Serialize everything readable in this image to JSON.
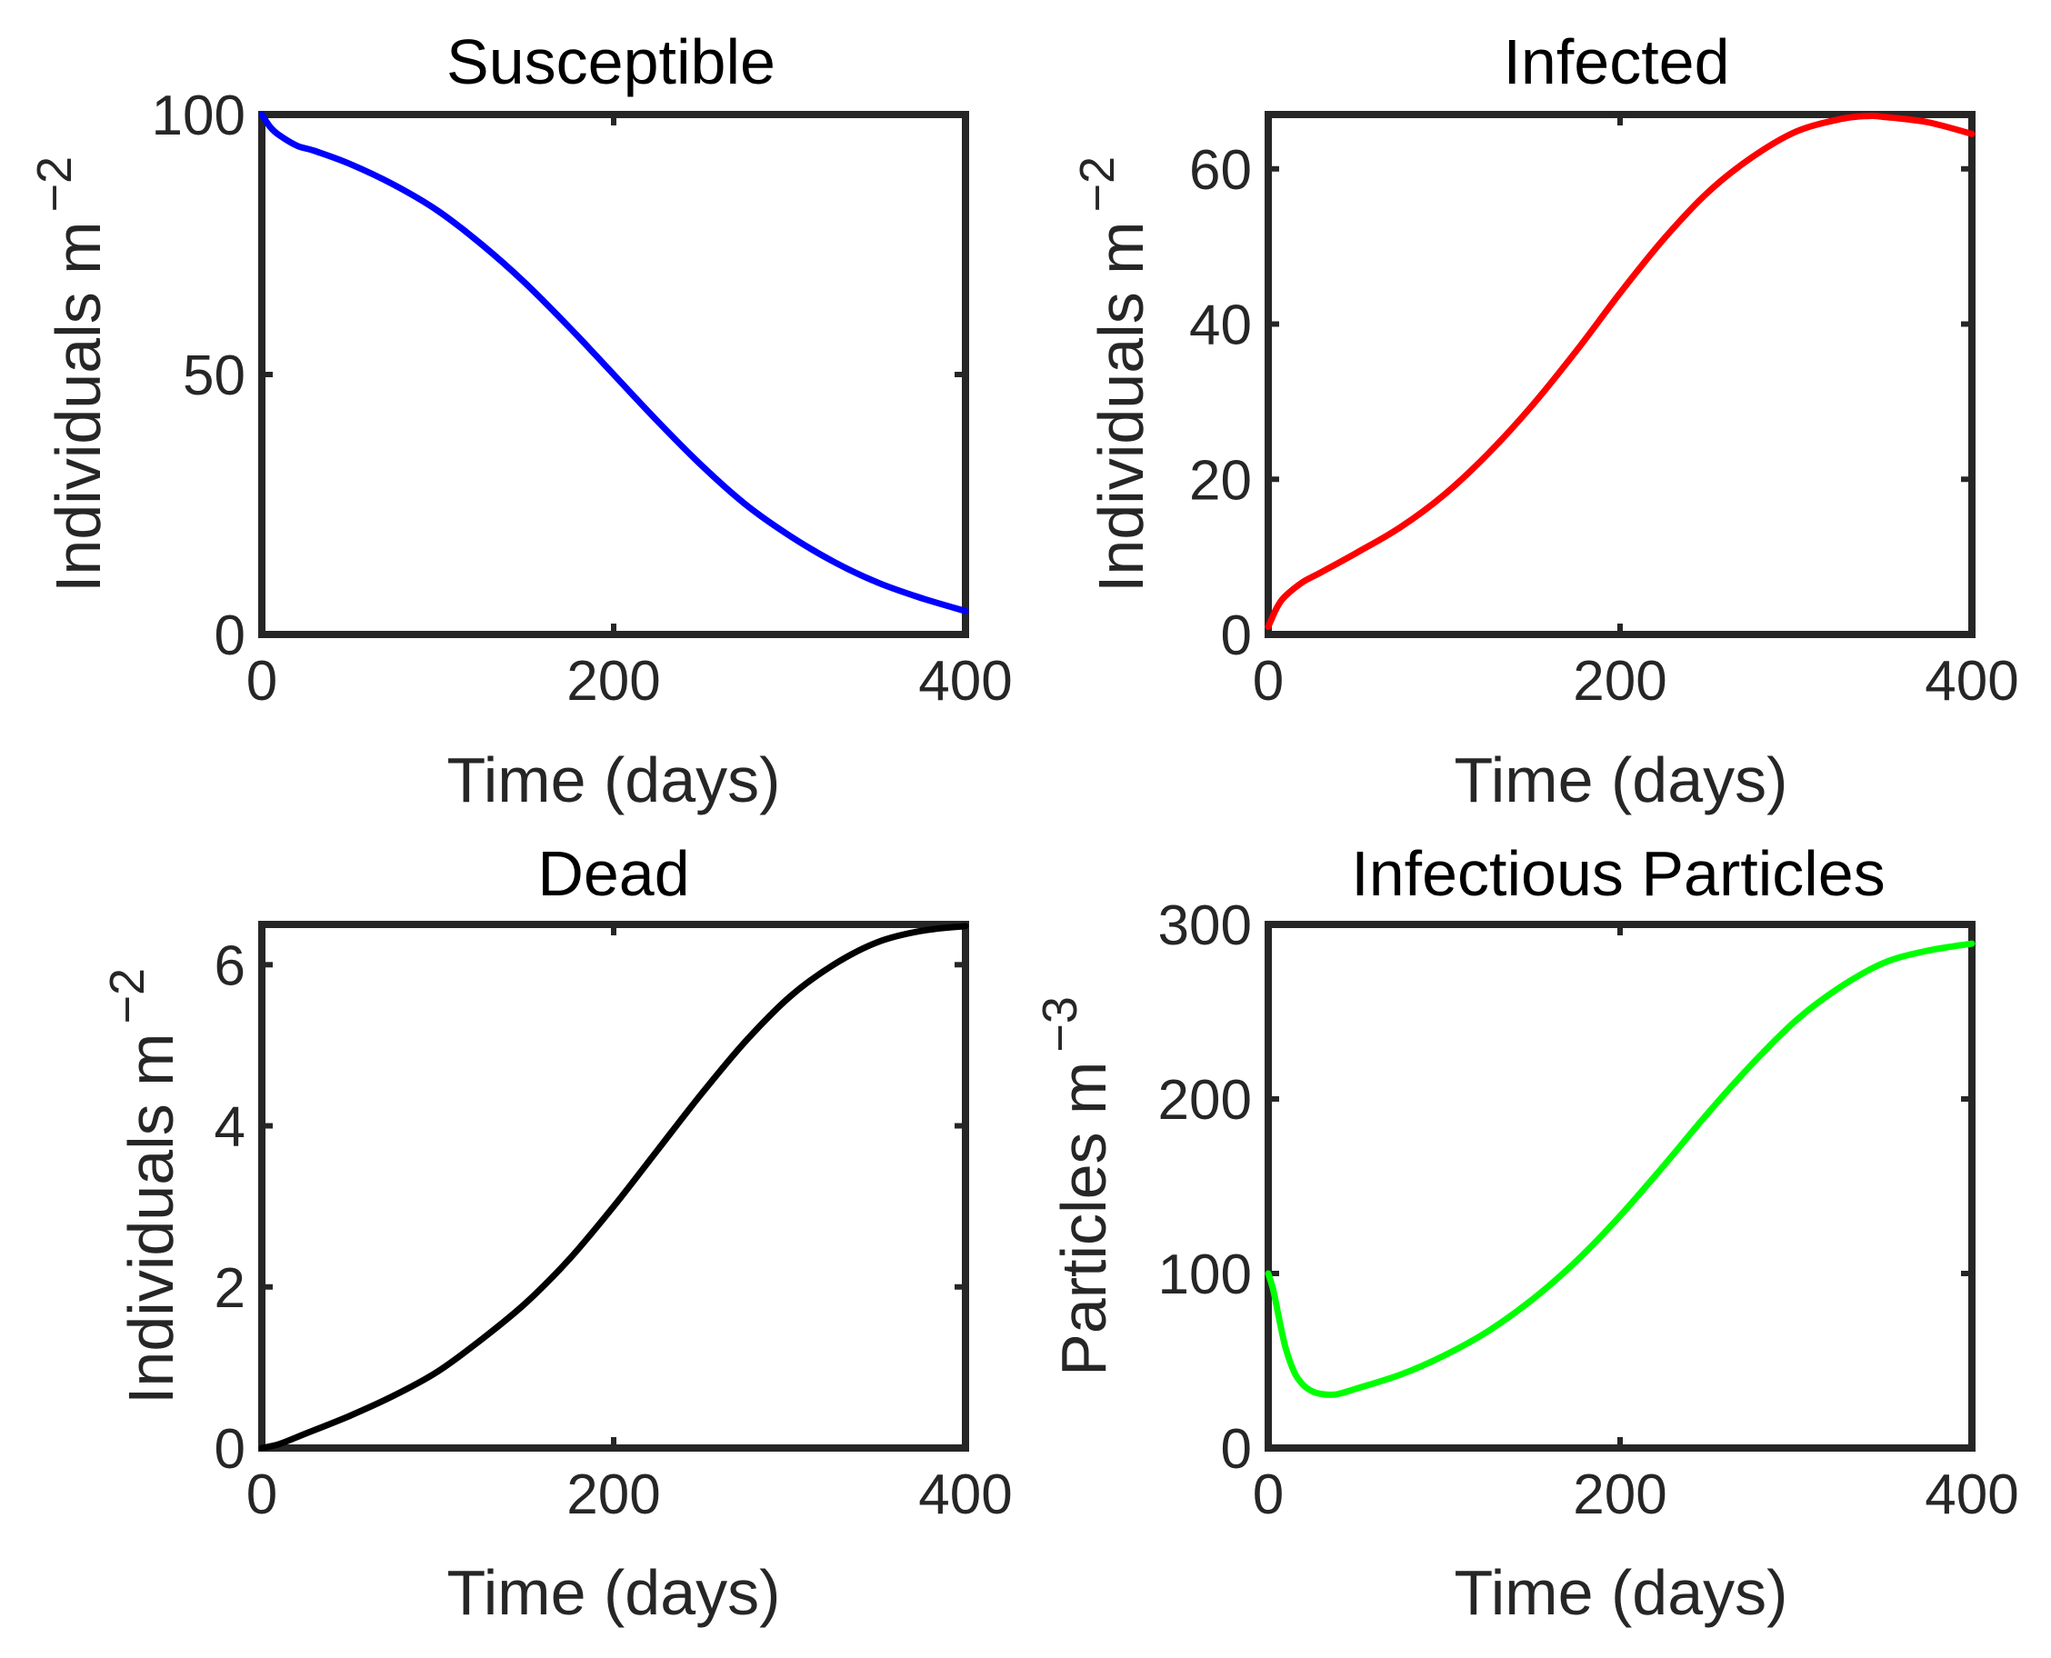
{
  "chart_data": [
    {
      "id": "susceptible",
      "type": "line",
      "title": "Susceptible",
      "xlabel": "Time (days)",
      "ylabel": "Individuals m",
      "ylabel_sup": "−2",
      "xlim": [
        0,
        400
      ],
      "ylim": [
        0,
        100
      ],
      "xticks": [
        0,
        200,
        400
      ],
      "xtick_labels": [
        "0",
        "200",
        "400"
      ],
      "yticks": [
        0,
        50,
        100
      ],
      "ytick_labels": [
        "0",
        "50",
        "100"
      ],
      "grid": false,
      "series": [
        {
          "name": "Susceptible",
          "color": "#0000ff",
          "x": [
            0,
            5,
            10,
            20,
            30,
            50,
            75,
            100,
            125,
            150,
            175,
            200,
            225,
            250,
            275,
            300,
            325,
            350,
            375,
            400
          ],
          "y": [
            100,
            97.5,
            96,
            94,
            93,
            90.5,
            86.5,
            81.5,
            75,
            67.5,
            59,
            50,
            41,
            32.5,
            25,
            19,
            14,
            10,
            7,
            4.5
          ]
        }
      ]
    },
    {
      "id": "infected",
      "type": "line",
      "title": "Infected",
      "xlabel": "Time (days)",
      "ylabel": "Individuals m",
      "ylabel_sup": "−2",
      "xlim": [
        0,
        400
      ],
      "ylim": [
        0,
        67
      ],
      "xticks": [
        0,
        200,
        400
      ],
      "xtick_labels": [
        "0",
        "200",
        "400"
      ],
      "yticks": [
        0,
        20,
        40,
        60
      ],
      "ytick_labels": [
        "0",
        "20",
        "40",
        "60"
      ],
      "grid": false,
      "series": [
        {
          "name": "Infected",
          "color": "#ff0000",
          "x": [
            0,
            5,
            10,
            20,
            30,
            50,
            75,
            100,
            125,
            150,
            175,
            200,
            225,
            250,
            275,
            300,
            325,
            340,
            350,
            375,
            400
          ],
          "y": [
            1,
            3.5,
            5,
            6.8,
            8,
            10.5,
            13.8,
            18,
            23.3,
            29.5,
            36.5,
            44,
            51,
            57,
            61.5,
            64.8,
            66.4,
            66.8,
            66.7,
            66,
            64.5
          ]
        }
      ]
    },
    {
      "id": "dead",
      "type": "line",
      "title": "Dead",
      "xlabel": "Time (days)",
      "ylabel": "Individuals m",
      "ylabel_sup": "−2",
      "xlim": [
        0,
        400
      ],
      "ylim": [
        0,
        6.5
      ],
      "xticks": [
        0,
        200,
        400
      ],
      "xtick_labels": [
        "0",
        "200",
        "400"
      ],
      "yticks": [
        0,
        2,
        4,
        6
      ],
      "ytick_labels": [
        "0",
        "2",
        "4",
        "6"
      ],
      "grid": false,
      "series": [
        {
          "name": "Dead",
          "color": "#000000",
          "x": [
            0,
            10,
            25,
            50,
            75,
            100,
            125,
            150,
            175,
            200,
            225,
            250,
            275,
            300,
            325,
            350,
            375,
            400
          ],
          "y": [
            0,
            0.05,
            0.18,
            0.4,
            0.65,
            0.95,
            1.35,
            1.8,
            2.35,
            3.0,
            3.7,
            4.4,
            5.05,
            5.6,
            6.0,
            6.28,
            6.42,
            6.48
          ]
        }
      ]
    },
    {
      "id": "infectious-particles",
      "type": "line",
      "title": "Infectious Particles",
      "xlabel": "Time (days)",
      "ylabel": "Particles m",
      "ylabel_sup": "−3",
      "xlim": [
        0,
        400
      ],
      "ylim": [
        0,
        300
      ],
      "xticks": [
        0,
        200,
        400
      ],
      "xtick_labels": [
        "0",
        "200",
        "400"
      ],
      "yticks": [
        0,
        100,
        200,
        300
      ],
      "ytick_labels": [
        "0",
        "100",
        "200",
        "300"
      ],
      "grid": false,
      "series": [
        {
          "name": "Infectious Particles",
          "color": "#00ff00",
          "x": [
            0,
            3,
            6,
            10,
            15,
            20,
            25,
            30,
            35,
            40,
            50,
            75,
            100,
            125,
            150,
            175,
            200,
            225,
            250,
            275,
            300,
            325,
            350,
            375,
            400
          ],
          "y": [
            100,
            90,
            75,
            57,
            43,
            36,
            32.5,
            31,
            30.5,
            31,
            34,
            42,
            53,
            67,
            85,
            107,
            133,
            162,
            192,
            220,
            245,
            264,
            278,
            285,
            289
          ]
        }
      ]
    }
  ]
}
